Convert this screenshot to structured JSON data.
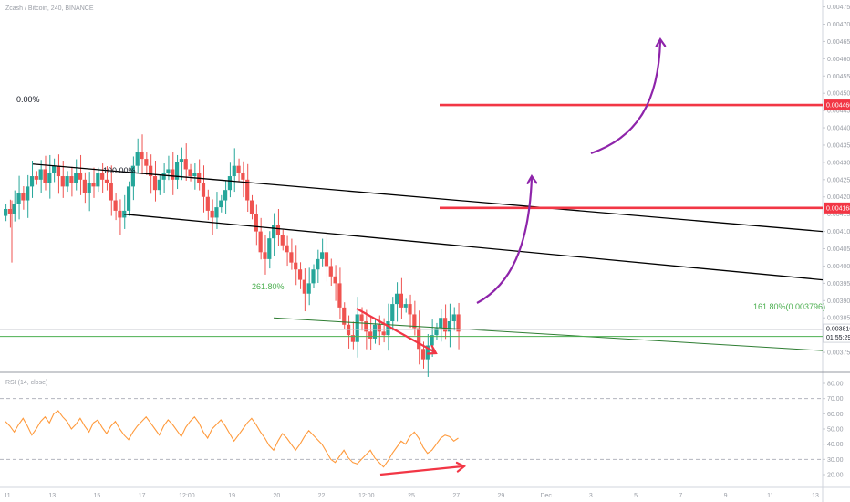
{
  "header": {
    "symbol_line": "Zcash / Bitcoin, 240, BINANCE",
    "rsi_line": "RSI (14, close)"
  },
  "colors": {
    "up": "#26a69a",
    "down": "#ef5350",
    "channel": "#000000",
    "fib": "#4caf50",
    "level": "#f23645",
    "arrow_purple": "#8e24aa",
    "arrow_red": "#f23645",
    "rsi": "#ff9a3c"
  },
  "chart_data": [
    {
      "type": "candlestick",
      "title": "",
      "xlabel": "",
      "ylabel": "",
      "ylim": [
        0.0037,
        0.00477
      ],
      "y_tick_values": [
        0.00375,
        0.0038,
        0.00385,
        0.0039,
        0.00395,
        0.004,
        0.00405,
        0.0041,
        0.00415,
        0.0042,
        0.00425,
        0.0043,
        0.00435,
        0.0044,
        0.00445,
        0.0045,
        0.00455,
        0.0046,
        0.00465,
        0.0047,
        0.00475
      ],
      "x_tick_labels": [
        "11",
        "13",
        "15",
        "17",
        "12:00",
        "19",
        "20",
        "22",
        "12:00",
        "25",
        "27",
        "29",
        "Dec",
        "3",
        "5",
        "7",
        "9",
        "11",
        "13"
      ],
      "candles": {
        "start_close": 0.004165,
        "step_count": 104,
        "closes": [
          0.004165,
          0.00415,
          0.00418,
          0.00421,
          0.00419,
          0.00423,
          0.00426,
          0.00425,
          0.00428,
          0.00424,
          0.00427,
          0.00429,
          0.00426,
          0.00423,
          0.00426,
          0.00424,
          0.00427,
          0.00425,
          0.00421,
          0.00424,
          0.00423,
          0.00427,
          0.00425,
          0.00424,
          0.00419,
          0.00416,
          0.00414,
          0.00416,
          0.00423,
          0.00429,
          0.00433,
          0.00431,
          0.00429,
          0.00426,
          0.00422,
          0.00425,
          0.00427,
          0.00428,
          0.00425,
          0.0043,
          0.00431,
          0.00428,
          0.00426,
          0.00427,
          0.00424,
          0.0042,
          0.00416,
          0.00414,
          0.00417,
          0.00419,
          0.00422,
          0.00426,
          0.00429,
          0.00427,
          0.00425,
          0.00419,
          0.00415,
          0.0041,
          0.00404,
          0.00402,
          0.00408,
          0.00412,
          0.00409,
          0.00406,
          0.00404,
          0.00401,
          0.00399,
          0.00396,
          0.00392,
          0.00395,
          0.00399,
          0.00402,
          0.00404,
          0.004,
          0.00397,
          0.00395,
          0.00388,
          0.00383,
          0.0038,
          0.00378,
          0.00386,
          0.00384,
          0.00381,
          0.00379,
          0.00383,
          0.00381,
          0.0038,
          0.00384,
          0.00389,
          0.00392,
          0.00388,
          0.00389,
          0.00386,
          0.00382,
          0.00376,
          0.00373,
          0.00377,
          0.0038,
          0.00382,
          0.00385,
          0.00381,
          0.00384,
          0.00386,
          0.00381
        ]
      },
      "channel": {
        "upper_start": 0.004295,
        "upper_end": 0.0041,
        "lower_start": 0.00415,
        "lower_end": 0.00396
      },
      "fib_labels": {
        "top": "0.00%",
        "bottom": "100.00%",
        "ext": "261.80%",
        "right": "161.80%(0.003796)"
      },
      "fib_line": {
        "start": 0.00385,
        "end": 0.003755
      },
      "horizontal_levels": [
        {
          "value": 0.004466,
          "label": "0.004466"
        },
        {
          "value": 0.004168,
          "label": "0.004168"
        }
      ],
      "current_price": {
        "value": 0.003816,
        "label": "0.003816",
        "countdown": "01:55:29"
      },
      "guide_level": 0.003796
    },
    {
      "type": "line",
      "title": "",
      "name": "",
      "ylim": [
        20,
        80
      ],
      "y_tick_labels": [
        "80.00",
        "70.00",
        "60.00",
        "50.00",
        "40.00",
        "30.00",
        "20.00"
      ],
      "values": [
        55,
        52,
        48,
        53,
        57,
        52,
        46,
        50,
        55,
        58,
        54,
        60,
        62,
        58,
        55,
        50,
        53,
        57,
        52,
        48,
        54,
        56,
        51,
        47,
        52,
        55,
        50,
        46,
        43,
        48,
        52,
        55,
        58,
        54,
        50,
        46,
        52,
        56,
        53,
        49,
        45,
        51,
        55,
        58,
        54,
        48,
        44,
        50,
        53,
        56,
        52,
        47,
        42,
        46,
        50,
        54,
        57,
        53,
        48,
        44,
        39,
        36,
        42,
        47,
        44,
        40,
        36,
        40,
        45,
        49,
        46,
        43,
        40,
        35,
        30,
        28,
        32,
        36,
        31,
        28,
        27,
        30,
        33,
        36,
        31,
        28,
        25,
        29,
        34,
        38,
        42,
        40,
        45,
        48,
        44,
        38,
        34,
        36,
        40,
        44,
        46,
        45,
        42,
        44
      ]
    }
  ]
}
